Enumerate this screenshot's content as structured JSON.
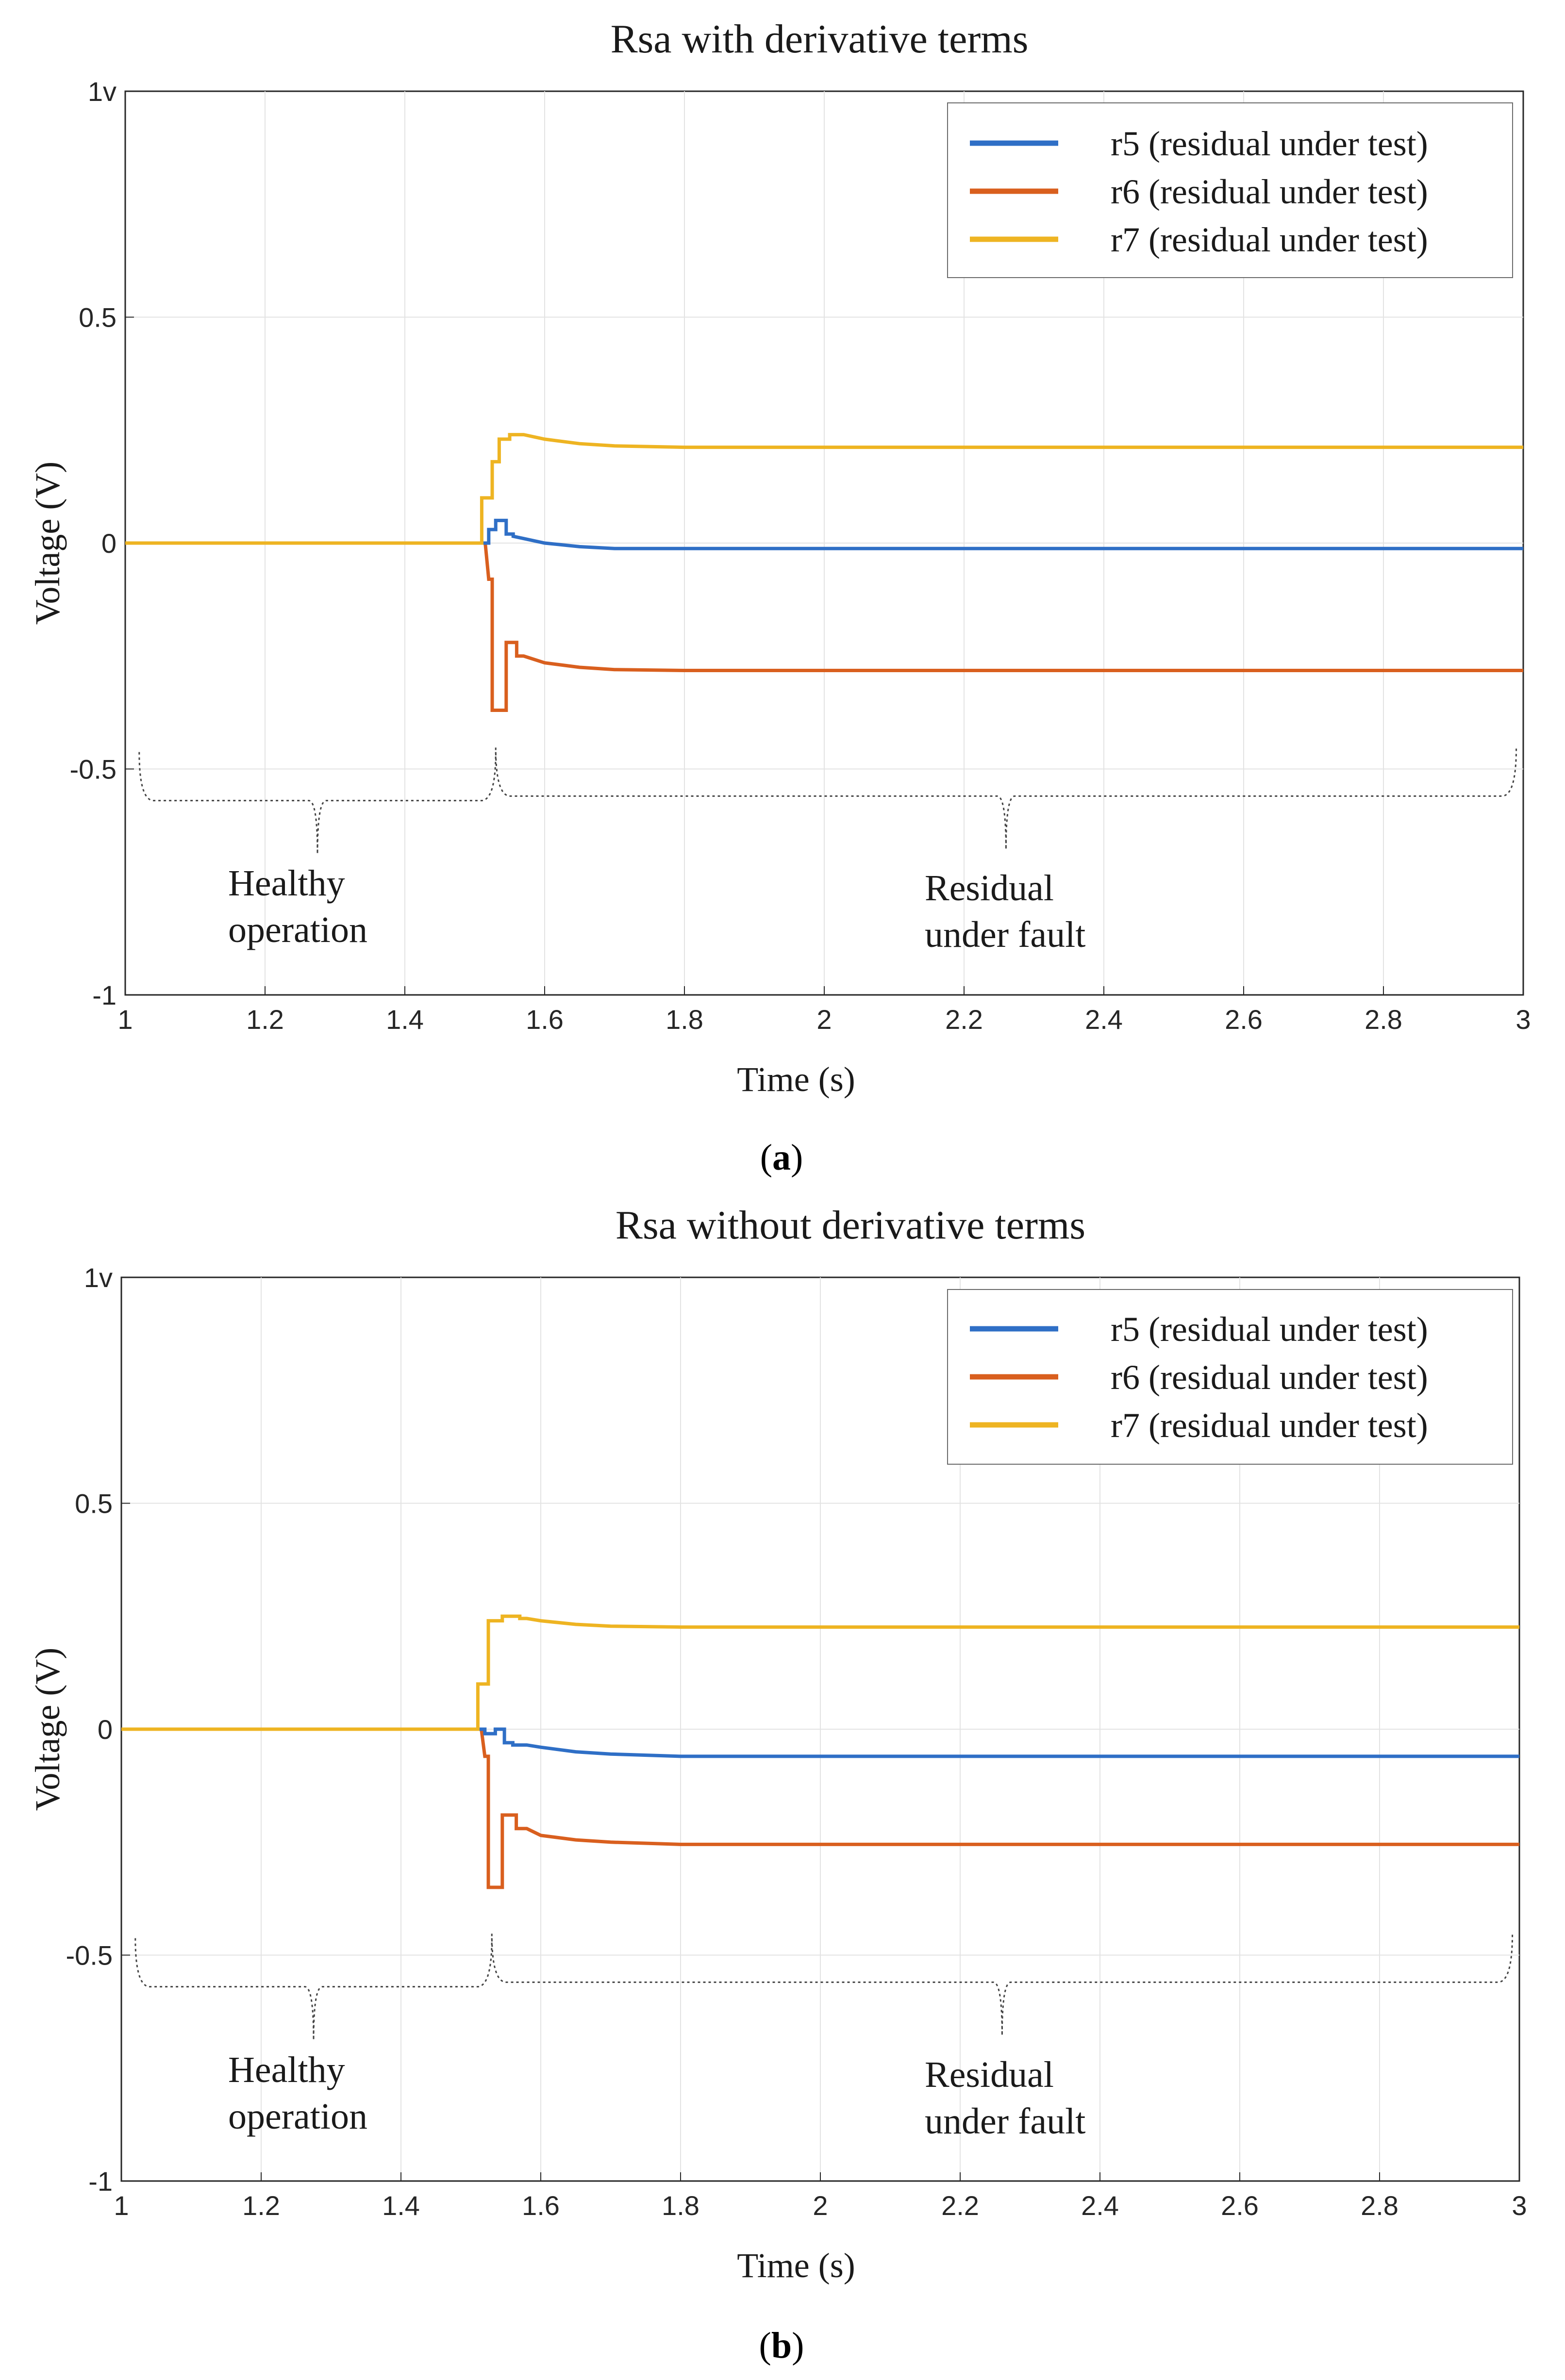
{
  "chart_data": [
    {
      "type": "line",
      "panel_label": "a",
      "title": "Rsa with derivative terms",
      "xlabel": "Time (s)",
      "ylabel": "Voltage (V)",
      "xlim": [
        1,
        3
      ],
      "ylim": [
        -1,
        1
      ],
      "grid": true,
      "legend_position": "top-right",
      "x_ticks": [
        1,
        1.2,
        1.4,
        1.6,
        1.8,
        2,
        2.2,
        2.4,
        2.6,
        2.8,
        3
      ],
      "x_tick_labels": [
        "1",
        "1.2",
        "1.4",
        "1.6",
        "1.8",
        "2",
        "2.2",
        "2.4",
        "2.6",
        "2.8",
        "3"
      ],
      "y_ticks": [
        -1,
        -0.5,
        0,
        0.5,
        1
      ],
      "y_tick_labels": [
        "-1",
        "-0.5",
        "0",
        "0.5",
        "1v"
      ],
      "series": [
        {
          "name": "r5 (residual under test)",
          "color": "#2f6fc6",
          "x": [
            1.0,
            1.52,
            1.52,
            1.53,
            1.53,
            1.545,
            1.545,
            1.555,
            1.555,
            1.57,
            1.6,
            1.65,
            1.7,
            1.8,
            2.0,
            3.0
          ],
          "y": [
            0,
            0,
            0.03,
            0.03,
            0.05,
            0.05,
            0.02,
            0.02,
            0.015,
            0.01,
            0.0,
            -0.008,
            -0.012,
            -0.012,
            -0.012,
            -0.012
          ]
        },
        {
          "name": "r6 (residual under test)",
          "color": "#d95f1e",
          "x": [
            1.0,
            1.515,
            1.52,
            1.525,
            1.525,
            1.545,
            1.545,
            1.56,
            1.56,
            1.57,
            1.6,
            1.65,
            1.7,
            1.8,
            2.0,
            3.0
          ],
          "y": [
            0,
            0,
            -0.08,
            -0.08,
            -0.37,
            -0.37,
            -0.22,
            -0.22,
            -0.25,
            -0.25,
            -0.265,
            -0.275,
            -0.28,
            -0.282,
            -0.282,
            -0.282
          ]
        },
        {
          "name": "r7 (residual under test)",
          "color": "#eeb422",
          "x": [
            1.0,
            1.51,
            1.51,
            1.525,
            1.525,
            1.535,
            1.535,
            1.55,
            1.55,
            1.57,
            1.6,
            1.65,
            1.7,
            1.8,
            2.0,
            3.0
          ],
          "y": [
            0,
            0,
            0.1,
            0.1,
            0.18,
            0.18,
            0.23,
            0.23,
            0.24,
            0.24,
            0.23,
            0.22,
            0.215,
            0.212,
            0.212,
            0.212
          ]
        }
      ],
      "annotations": [
        {
          "lines": [
            "Healthy",
            "operation"
          ],
          "x": 1.15,
          "y": -0.77
        },
        {
          "lines": [
            "Residual",
            "under fault"
          ],
          "x": 2.14,
          "y": -0.78
        }
      ],
      "braces": [
        {
          "x_start": 1.02,
          "x_end": 1.53,
          "y": -0.57
        },
        {
          "x_start": 1.53,
          "x_end": 2.99,
          "y": -0.56
        }
      ]
    },
    {
      "type": "line",
      "panel_label": "b",
      "title": "Rsa without derivative terms",
      "xlabel": "Time (s)",
      "ylabel": "Voltage (V)",
      "xlim": [
        1,
        3
      ],
      "ylim": [
        -1,
        1
      ],
      "grid": true,
      "legend_position": "top-right",
      "x_ticks": [
        1,
        1.2,
        1.4,
        1.6,
        1.8,
        2,
        2.2,
        2.4,
        2.6,
        2.8,
        3
      ],
      "x_tick_labels": [
        "1",
        "1.2",
        "1.4",
        "1.6",
        "1.8",
        "2",
        "2.2",
        "2.4",
        "2.6",
        "2.8",
        "3"
      ],
      "y_ticks": [
        -1,
        -0.5,
        0,
        0.5,
        1
      ],
      "y_tick_labels": [
        "-1",
        "-0.5",
        "0",
        "0.5",
        "1v"
      ],
      "series": [
        {
          "name": "r5 (residual under test)",
          "color": "#2f6fc6",
          "x": [
            1.0,
            1.52,
            1.52,
            1.535,
            1.535,
            1.548,
            1.548,
            1.56,
            1.56,
            1.58,
            1.6,
            1.65,
            1.7,
            1.8,
            2.0,
            3.0
          ],
          "y": [
            0,
            0,
            -0.01,
            -0.01,
            0.0,
            0.0,
            -0.03,
            -0.03,
            -0.035,
            -0.035,
            -0.04,
            -0.05,
            -0.055,
            -0.06,
            -0.06,
            -0.06
          ]
        },
        {
          "name": "r6 (residual under test)",
          "color": "#d95f1e",
          "x": [
            1.0,
            1.515,
            1.52,
            1.525,
            1.525,
            1.545,
            1.545,
            1.565,
            1.565,
            1.58,
            1.6,
            1.65,
            1.7,
            1.8,
            2.0,
            3.0
          ],
          "y": [
            0,
            0,
            -0.06,
            -0.06,
            -0.35,
            -0.35,
            -0.19,
            -0.19,
            -0.22,
            -0.22,
            -0.235,
            -0.245,
            -0.25,
            -0.255,
            -0.255,
            -0.255
          ]
        },
        {
          "name": "r7 (residual under test)",
          "color": "#eeb422",
          "x": [
            1.0,
            1.51,
            1.51,
            1.525,
            1.525,
            1.545,
            1.545,
            1.57,
            1.57,
            1.58,
            1.6,
            1.65,
            1.7,
            1.8,
            2.0,
            3.0
          ],
          "y": [
            0,
            0,
            0.1,
            0.1,
            0.24,
            0.24,
            0.25,
            0.25,
            0.245,
            0.245,
            0.24,
            0.232,
            0.228,
            0.226,
            0.226,
            0.226
          ]
        }
      ],
      "annotations": [
        {
          "lines": [
            "Healthy",
            "operation"
          ],
          "x": 1.15,
          "y": -0.77
        },
        {
          "lines": [
            "Residual",
            "under fault"
          ],
          "x": 2.14,
          "y": -0.78
        }
      ],
      "braces": [
        {
          "x_start": 1.02,
          "x_end": 1.53,
          "y": -0.57
        },
        {
          "x_start": 1.53,
          "x_end": 2.99,
          "y": -0.56
        }
      ]
    }
  ]
}
